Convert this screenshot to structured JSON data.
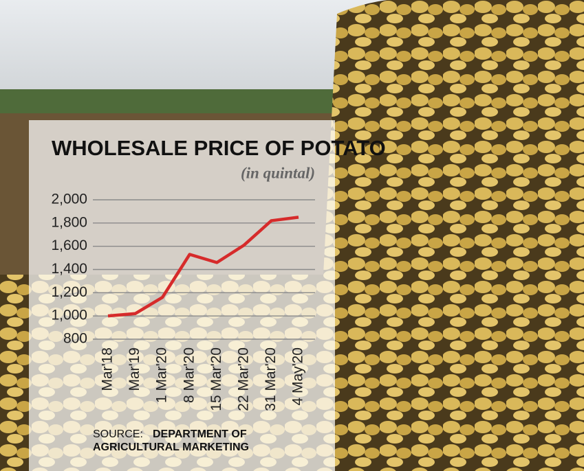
{
  "chart_data": {
    "type": "line",
    "title": "WHOLESALE PRICE OF POTATO",
    "subtitle": "(in quintal)",
    "categories": [
      "Mar'18",
      "Mar'19",
      "1 Mar'20",
      "8 Mar'20",
      "15 Mar'20",
      "22 Mar'20",
      "31 Mar'20",
      "4 May'20"
    ],
    "series": [
      {
        "name": "Wholesale price",
        "color": "#d62b2b",
        "values": [
          1000,
          1020,
          1160,
          1530,
          1460,
          1610,
          1820,
          1850
        ]
      }
    ],
    "ylim": [
      800,
      2000
    ],
    "yticks": [
      800,
      {
        "value": 1000,
        "label": "1,000"
      },
      {
        "value": 1200,
        "label": "1,200"
      },
      {
        "value": 1400,
        "label": "1,400"
      },
      {
        "value": 1600,
        "label": "1,600"
      },
      {
        "value": 1800,
        "label": "1,800"
      },
      {
        "value": 2000,
        "label": "2,000"
      }
    ],
    "grid": true,
    "source_label": "SOURCE:",
    "source": [
      "DEPARTMENT OF",
      "AGRICULTURAL MARKETING"
    ]
  }
}
